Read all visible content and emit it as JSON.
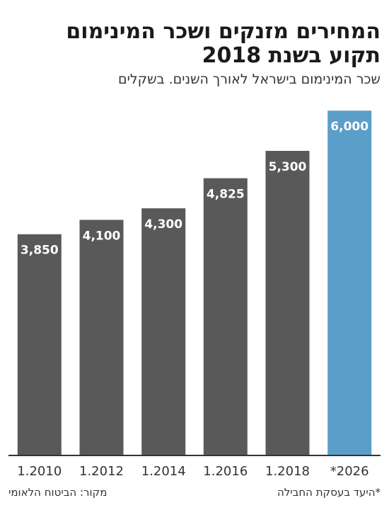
{
  "title_line1": "המחירים מזנקים ושכר המינימום",
  "title_line2": "תקוע בשנת 2018",
  "subtitle": "שכר המינימום בישראל לאורך השנים. בשקלים",
  "source": "מקור: הביטוח הלאומי",
  "note": "*היעד בעסקת החבילה",
  "colors": {
    "bar": "#595959",
    "highlight": "#5b9ec9",
    "axis": "#333333",
    "label": "#ffffff"
  },
  "chart_data": {
    "type": "bar",
    "title": "המחירים מזנקים ושכר המינימום תקוע בשנת 2018",
    "subtitle": "שכר המינימום בישראל לאורך השנים. בשקלים",
    "categories": [
      "1.2010",
      "1.2012",
      "1.2014",
      "1.2016",
      "1.2018",
      "*2026"
    ],
    "values": [
      3850,
      4100,
      4300,
      4825,
      5300,
      6000
    ],
    "value_labels": [
      "3,850",
      "4,100",
      "4,300",
      "4,825",
      "5,300",
      "6,000"
    ],
    "highlight_index": 5,
    "ylim": [
      0,
      6200
    ],
    "grid": false,
    "legend": "none",
    "xlabel": "",
    "ylabel": ""
  }
}
